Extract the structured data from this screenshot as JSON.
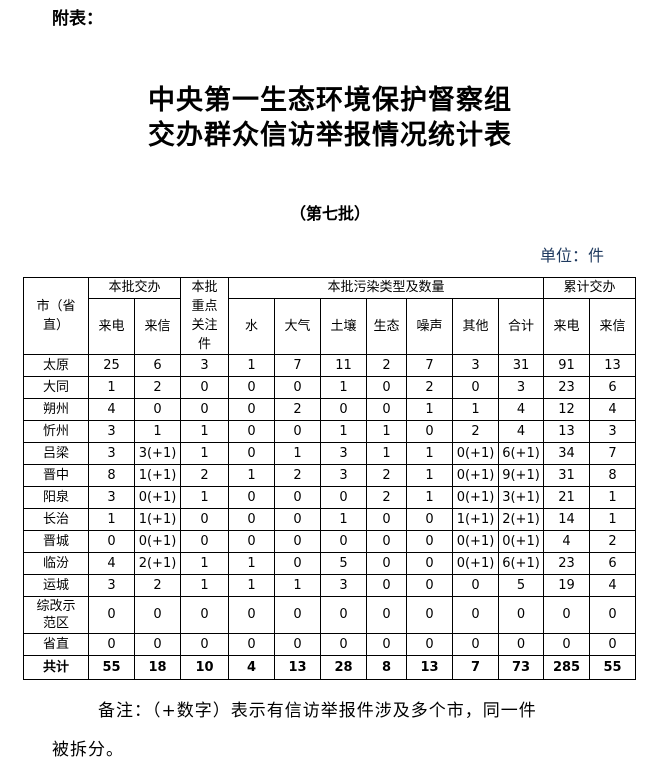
{
  "appendix_label": "附表：",
  "title_line1": "中央第一生态环境保护督察组",
  "title_line2": "交办群众信访举报情况统计表",
  "batch": "（第七批）",
  "unit": "单位：件",
  "table": {
    "headers": {
      "city": "市（省直）",
      "city_line1": "市",
      "city_line2": "（省直）",
      "batch_assigned": "本批交办",
      "key_focus": "本批重点关注件",
      "key_focus_lines": [
        "本批",
        "重点",
        "关注",
        "件"
      ],
      "pollution_types": "本批污染类型及数量",
      "cumulative": "累计交办",
      "sub": [
        "来电",
        "来信",
        "水",
        "大气",
        "土壤",
        "生态",
        "噪声",
        "其他",
        "合计",
        "来电",
        "来信"
      ]
    },
    "rows": [
      {
        "city": "太原",
        "values": [
          "25",
          "6",
          "3",
          "1",
          "7",
          "11",
          "2",
          "7",
          "3",
          "31",
          "91",
          "13"
        ]
      },
      {
        "city": "大同",
        "values": [
          "1",
          "2",
          "0",
          "0",
          "0",
          "1",
          "0",
          "2",
          "0",
          "3",
          "23",
          "6"
        ]
      },
      {
        "city": "朔州",
        "values": [
          "4",
          "0",
          "0",
          "0",
          "2",
          "0",
          "0",
          "1",
          "1",
          "4",
          "12",
          "4"
        ]
      },
      {
        "city": "忻州",
        "values": [
          "3",
          "1",
          "1",
          "0",
          "0",
          "1",
          "1",
          "0",
          "2",
          "4",
          "13",
          "3"
        ]
      },
      {
        "city": "吕梁",
        "values": [
          "3",
          "3(+1)",
          "1",
          "0",
          "1",
          "3",
          "1",
          "1",
          "0(+1)",
          "6(+1)",
          "34",
          "7"
        ]
      },
      {
        "city": "晋中",
        "values": [
          "8",
          "1(+1)",
          "2",
          "1",
          "2",
          "3",
          "2",
          "1",
          "0(+1)",
          "9(+1)",
          "31",
          "8"
        ]
      },
      {
        "city": "阳泉",
        "values": [
          "3",
          "0(+1)",
          "1",
          "0",
          "0",
          "0",
          "2",
          "1",
          "0(+1)",
          "3(+1)",
          "21",
          "1"
        ]
      },
      {
        "city": "长治",
        "values": [
          "1",
          "1(+1)",
          "0",
          "0",
          "0",
          "1",
          "0",
          "0",
          "1(+1)",
          "2(+1)",
          "14",
          "1"
        ]
      },
      {
        "city": "晋城",
        "values": [
          "0",
          "0(+1)",
          "0",
          "0",
          "0",
          "0",
          "0",
          "0",
          "0(+1)",
          "0(+1)",
          "4",
          "2"
        ]
      },
      {
        "city": "临汾",
        "values": [
          "4",
          "2(+1)",
          "1",
          "1",
          "0",
          "5",
          "0",
          "0",
          "0(+1)",
          "6(+1)",
          "23",
          "6"
        ]
      },
      {
        "city": "运城",
        "values": [
          "3",
          "2",
          "1",
          "1",
          "1",
          "3",
          "0",
          "0",
          "0",
          "5",
          "19",
          "4"
        ]
      },
      {
        "city": "综改示范区",
        "values": [
          "0",
          "0",
          "0",
          "0",
          "0",
          "0",
          "0",
          "0",
          "0",
          "0",
          "0",
          "0"
        ]
      },
      {
        "city": "省直",
        "values": [
          "0",
          "0",
          "0",
          "0",
          "0",
          "0",
          "0",
          "0",
          "0",
          "0",
          "0",
          "0"
        ]
      }
    ],
    "total": {
      "city": "共计",
      "values": [
        "55",
        "18",
        "10",
        "4",
        "13",
        "28",
        "8",
        "13",
        "7",
        "73",
        "285",
        "55"
      ]
    }
  },
  "note_line1": "备注：（+数字）表示有信访举报件涉及多个市，同一件",
  "note_line2": "被拆分。"
}
